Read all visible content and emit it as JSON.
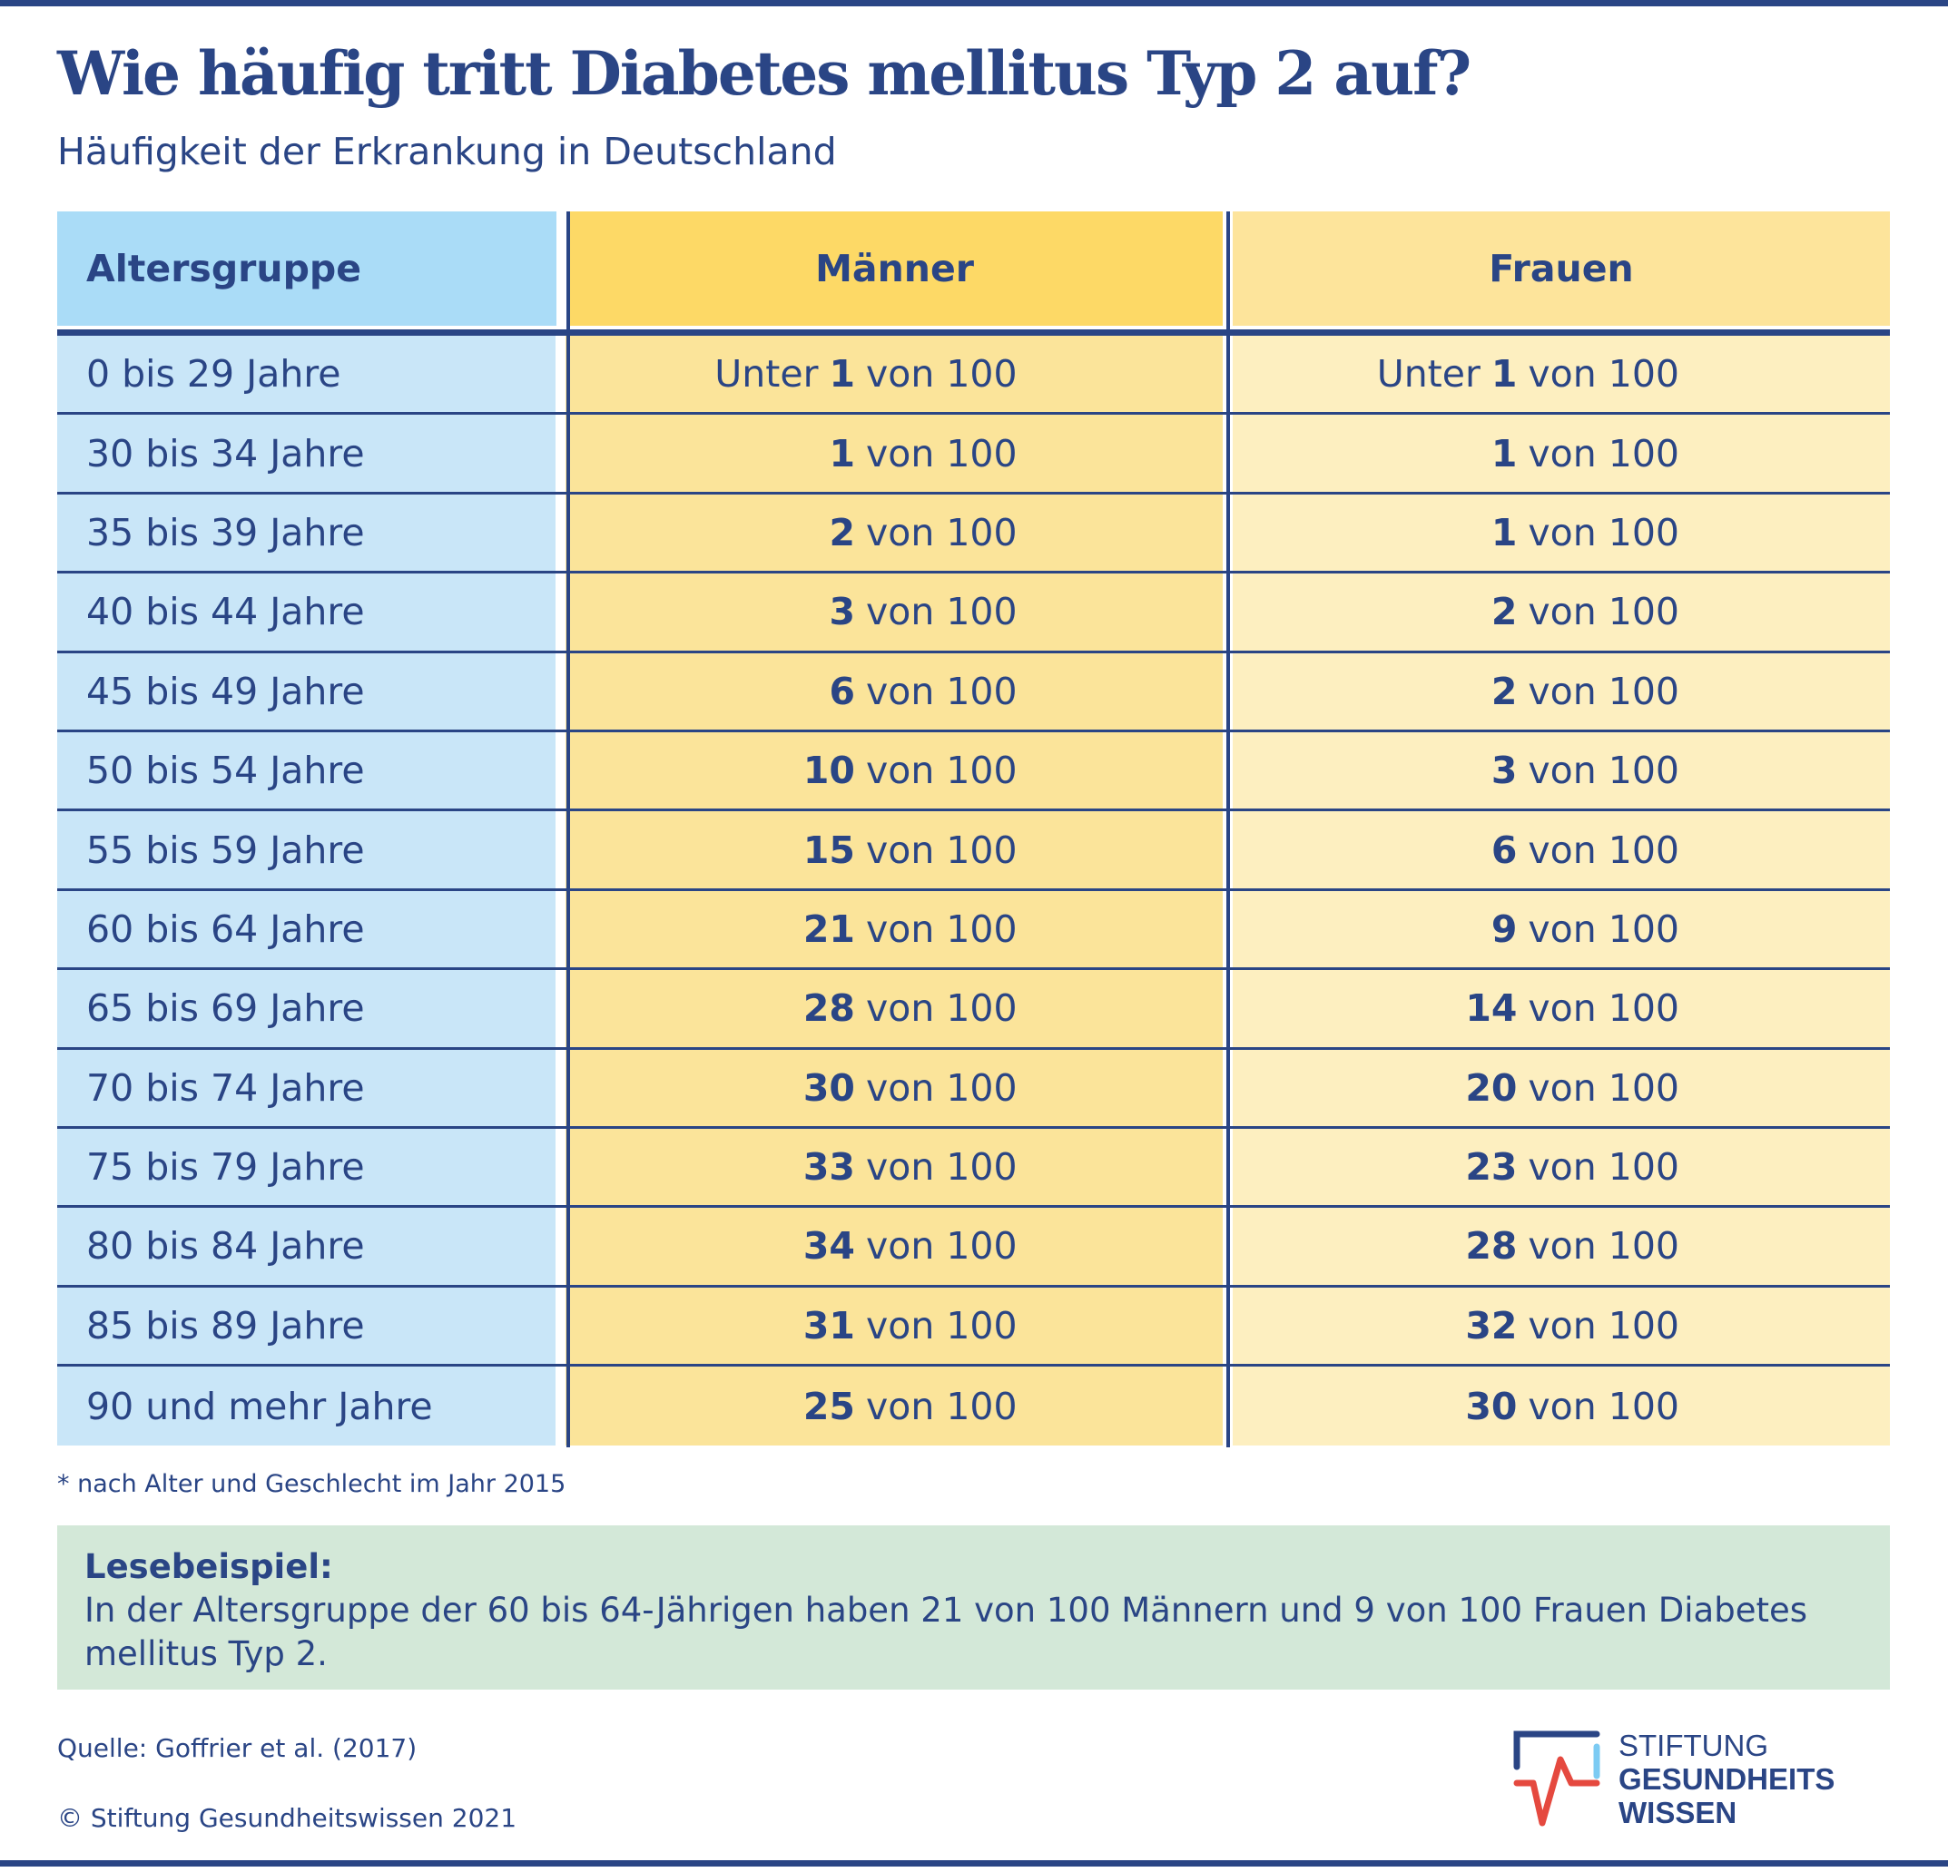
{
  "title": "Wie häufig tritt Diabetes mellitus Typ 2 auf?",
  "subtitle": "Häufigkeit der Erkrankung in Deutschland",
  "table": {
    "headers": [
      "Altersgruppe",
      "Männer",
      "Frauen"
    ],
    "unit": "von 100",
    "rows": [
      {
        "age": "0 bis 29 Jahre",
        "men_prefix": "Unter",
        "men": "1",
        "women_prefix": "Unter",
        "women": "1"
      },
      {
        "age": "30 bis 34 Jahre",
        "men": "1",
        "women": "1"
      },
      {
        "age": "35 bis 39 Jahre",
        "men": "2",
        "women": "1"
      },
      {
        "age": "40 bis 44 Jahre",
        "men": "3",
        "women": "2"
      },
      {
        "age": "45 bis 49 Jahre",
        "men": "6",
        "women": "2"
      },
      {
        "age": "50 bis 54 Jahre",
        "men": "10",
        "women": "3"
      },
      {
        "age": "55 bis 59 Jahre",
        "men": "15",
        "women": "6"
      },
      {
        "age": "60 bis 64 Jahre",
        "men": "21",
        "women": "9"
      },
      {
        "age": "65 bis 69 Jahre",
        "men": "28",
        "women": "14"
      },
      {
        "age": "70 bis 74 Jahre",
        "men": "30",
        "women": "20"
      },
      {
        "age": "75 bis 79 Jahre",
        "men": "33",
        "women": "23"
      },
      {
        "age": "80 bis 84 Jahre",
        "men": "34",
        "women": "28"
      },
      {
        "age": "85 bis 89 Jahre",
        "men": "31",
        "women": "32"
      },
      {
        "age": "90 und mehr Jahre",
        "men": "25",
        "women": "30"
      }
    ]
  },
  "footnote": "* nach Alter und Geschlecht im Jahr 2015",
  "example": {
    "label": "Lesebeispiel:",
    "text": "In der Altersgruppe der 60 bis 64-Jährigen haben 21 von 100 Männern und 9 von 100 Frauen Diabetes mellitus Typ 2."
  },
  "source": "Quelle: Goffrier et al. (2017)",
  "copyright": "© Stiftung Gesundheitswissen 2021",
  "logo": {
    "lines": [
      "STIFTUNG",
      "GESUNDHEITS",
      "WISSEN"
    ]
  },
  "colors": {
    "navy": "#2a4585",
    "age_col": "#c9e6f8",
    "men_col": "#fbe49a",
    "women_col": "#fdefc0",
    "example_bg": "#d3e8d8",
    "logo_red": "#e5493f",
    "logo_lightblue": "#7ccbf3"
  }
}
